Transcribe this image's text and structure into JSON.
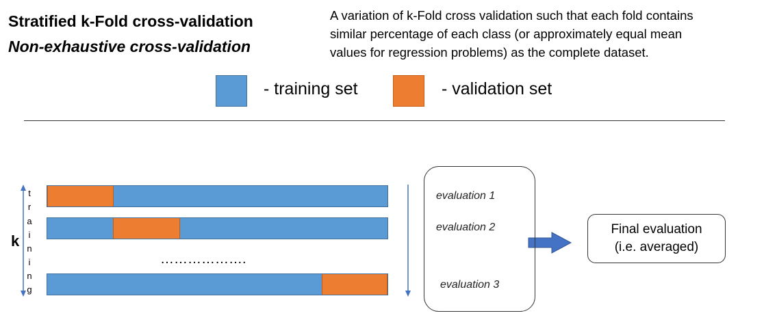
{
  "header": {
    "title": "Stratified k-Fold cross-validation",
    "subtitle": "Non-exhaustive cross-validation"
  },
  "description": {
    "lines": [
      "A variation of k-Fold cross validation such that each fold contains",
      "similar percentage of each class (or approximately equal mean",
      "values for regression problems) as the complete dataset."
    ]
  },
  "legend": {
    "training_label": "- training set",
    "validation_label": "- validation set",
    "training_color": "#5b9bd5",
    "validation_color": "#ed7d31"
  },
  "axis": {
    "k_label": "k",
    "training_letters": [
      "t",
      "r",
      "a",
      "i",
      "n",
      "i",
      "n",
      "g"
    ]
  },
  "folds": {
    "ellipsis": "……………….",
    "rows": [
      {
        "validation_position": "first"
      },
      {
        "validation_position": "second"
      },
      {
        "validation_position": "last"
      }
    ]
  },
  "evaluations": [
    "evaluation 1",
    "evaluation 2",
    "evaluation 3"
  ],
  "final": {
    "line1": "Final evaluation",
    "line2": "(i.e. averaged)"
  }
}
